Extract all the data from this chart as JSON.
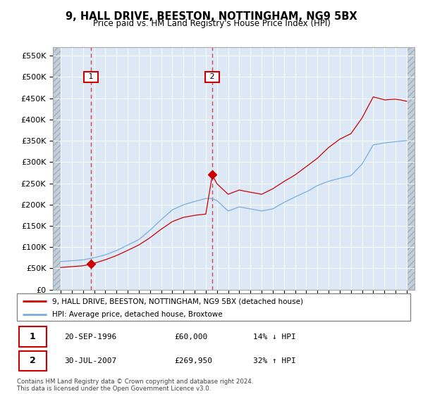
{
  "title": "9, HALL DRIVE, BEESTON, NOTTINGHAM, NG9 5BX",
  "subtitle": "Price paid vs. HM Land Registry's House Price Index (HPI)",
  "ylabel_ticks": [
    "£0",
    "£50K",
    "£100K",
    "£150K",
    "£200K",
    "£250K",
    "£300K",
    "£350K",
    "£400K",
    "£450K",
    "£500K",
    "£550K"
  ],
  "ytick_values": [
    0,
    50000,
    100000,
    150000,
    200000,
    250000,
    300000,
    350000,
    400000,
    450000,
    500000,
    550000
  ],
  "ylim": [
    0,
    570000
  ],
  "xlim_start": 1993.3,
  "xlim_end": 2025.7,
  "transaction1_year": 1996.72,
  "transaction1_price": 60000,
  "transaction2_year": 2007.58,
  "transaction2_price": 269950,
  "line_color_property": "#cc0000",
  "line_color_hpi": "#7aaddb",
  "background_color": "#dce8f5",
  "hatch_color": "#c0cfdf",
  "grid_color": "#ffffff",
  "footer_text": "Contains HM Land Registry data © Crown copyright and database right 2024.\nThis data is licensed under the Open Government Licence v3.0.",
  "legend_line1": "9, HALL DRIVE, BEESTON, NOTTINGHAM, NG9 5BX (detached house)",
  "legend_line2": "HPI: Average price, detached house, Broxtowe",
  "table_row1_num": "1",
  "table_row1_date": "20-SEP-1996",
  "table_row1_price": "£60,000",
  "table_row1_hpi": "14% ↓ HPI",
  "table_row2_num": "2",
  "table_row2_date": "30-JUL-2007",
  "table_row2_price": "£269,950",
  "table_row2_hpi": "32% ↑ HPI"
}
